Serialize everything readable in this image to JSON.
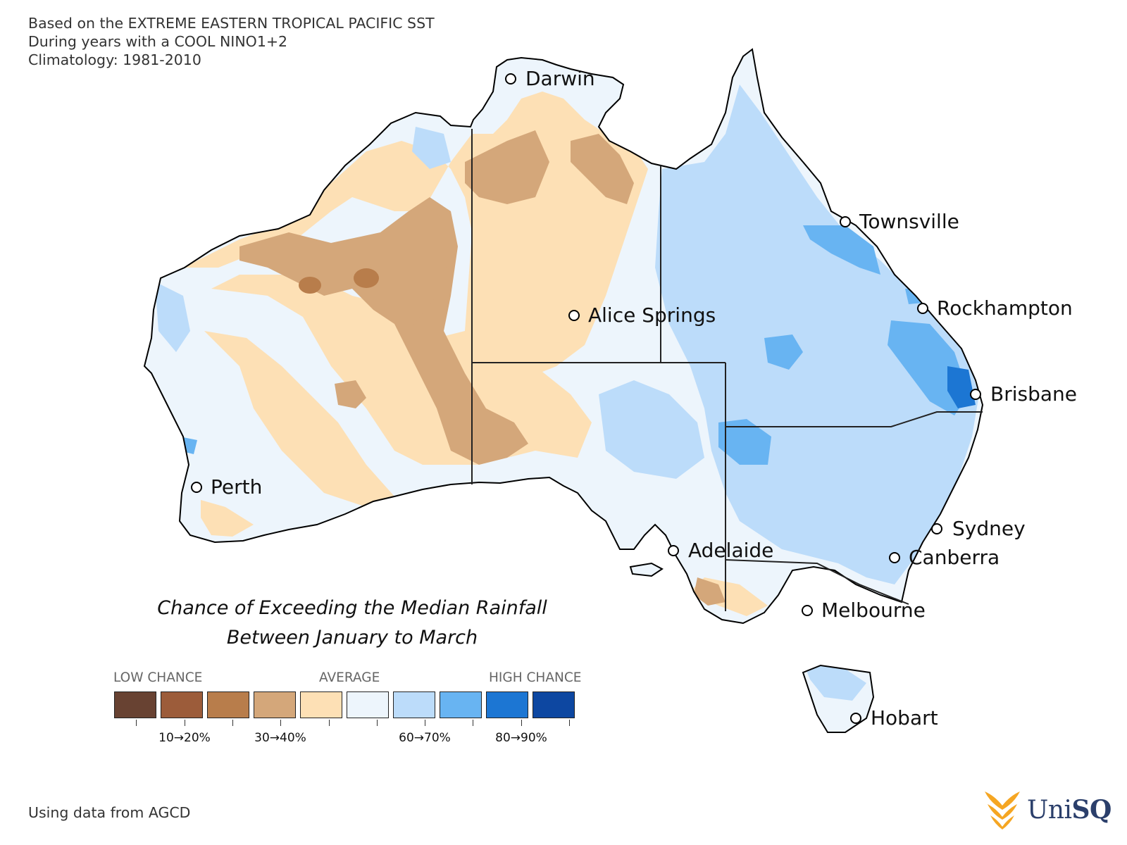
{
  "header": {
    "line1": "Based on the EXTREME EASTERN TROPICAL PACIFIC SST",
    "line2": "During years with a COOL NINO1+2",
    "line3": "Climatology: 1981-2010"
  },
  "title": {
    "line1": "Chance of Exceeding the Median Rainfall",
    "line2": "Between January to March"
  },
  "legend": {
    "low_label": "LOW CHANCE",
    "average_label": "AVERAGE",
    "high_label": "HIGH CHANCE",
    "colors": [
      "#684232",
      "#9c5c3a",
      "#b87d4b",
      "#d4a77a",
      "#fde0b5",
      "#edf5fc",
      "#bcdcfa",
      "#68b4f2",
      "#1c76d3",
      "#0d47a1"
    ],
    "tick_labels": [
      "10→20%",
      "30→40%",
      "60→70%",
      "80→90%"
    ]
  },
  "source": "Using data from AGCD",
  "logo": {
    "text_a": "Uni",
    "text_b": "SQ"
  },
  "cities": [
    {
      "name": "Darwin"
    },
    {
      "name": "Townsville"
    },
    {
      "name": "Rockhampton"
    },
    {
      "name": "Alice Springs"
    },
    {
      "name": "Brisbane"
    },
    {
      "name": "Perth"
    },
    {
      "name": "Sydney"
    },
    {
      "name": "Adelaide"
    },
    {
      "name": "Canberra"
    },
    {
      "name": "Melbourne"
    },
    {
      "name": "Hobart"
    }
  ],
  "map_colors": {
    "land_outline": "#000000",
    "state_border": "#222222"
  }
}
